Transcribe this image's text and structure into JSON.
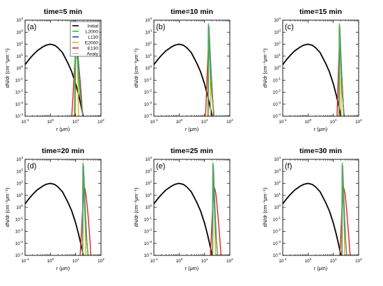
{
  "chart_data": {
    "type": "line",
    "shared": {
      "xlabel": "r (μm)",
      "ylabel": "dN/dr (cm⁻³μm⁻¹)",
      "xscale": "log",
      "yscale": "log",
      "xlim": [
        0.1,
        100
      ],
      "ylim": [
        0.0001,
        10000
      ],
      "xticks": [
        {
          "v": 0.1,
          "b": "10",
          "e": "-1"
        },
        {
          "v": 1,
          "b": "10",
          "e": "0"
        },
        {
          "v": 10,
          "b": "10",
          "e": "1"
        },
        {
          "v": 100,
          "b": "10",
          "e": "2"
        }
      ],
      "yticks": [
        {
          "v": 0.0001,
          "b": "10",
          "e": "-4"
        },
        {
          "v": 0.001,
          "b": "10",
          "e": "-3"
        },
        {
          "v": 0.01,
          "b": "10",
          "e": "-2"
        },
        {
          "v": 0.1,
          "b": "10",
          "e": "-1"
        },
        {
          "v": 1,
          "b": "10",
          "e": "0"
        },
        {
          "v": 10,
          "b": "10",
          "e": "1"
        },
        {
          "v": 100,
          "b": "10",
          "e": "2"
        },
        {
          "v": 1000,
          "b": "10",
          "e": "3"
        },
        {
          "v": 10000,
          "b": "10",
          "e": "4"
        }
      ],
      "legend": {
        "placement": "top-right",
        "entries": [
          {
            "name": "Initial",
            "color": "#000000"
          },
          {
            "name": "L2000",
            "color": "#22cc22"
          },
          {
            "name": "L130",
            "color": "#1f3fd0"
          },
          {
            "name": "E2000",
            "color": "#f2a900"
          },
          {
            "name": "E130",
            "color": "#e02020"
          },
          {
            "name": "Analy",
            "color": "#888888"
          }
        ]
      },
      "initial": {
        "name": "Initial",
        "color": "#000000",
        "x": [
          0.1,
          0.15,
          0.2,
          0.3,
          0.5,
          0.7,
          1,
          1.5,
          2,
          3,
          5,
          7,
          10,
          13,
          16,
          20
        ],
        "y": [
          2,
          6,
          12,
          28,
          60,
          85,
          100,
          80,
          50,
          20,
          2.5,
          0.5,
          0.05,
          0.006,
          0.0009,
          0.0001
        ]
      }
    },
    "panels": [
      {
        "title": "time=5 min",
        "label": "(a)",
        "series": [
          {
            "name": "E130",
            "color": "#e02020",
            "x": [
              7,
              8,
              9,
              10,
              11,
              12,
              13,
              15,
              17,
              19
            ],
            "y": [
              0.0001,
              0.01,
              1,
              30,
              60,
              20,
              3,
              0.1,
              0.003,
              0.0001
            ]
          },
          {
            "name": "E2000",
            "color": "#f2a900",
            "x": [
              8.8,
              9.3,
              9.8,
              10.3,
              11,
              12,
              13
            ],
            "y": [
              0.0001,
              0.5,
              20,
              300,
              50,
              1,
              0.0001
            ]
          },
          {
            "name": "L130",
            "color": "#1f3fd0",
            "x": [
              9.5,
              9.8,
              10.1,
              10.5,
              11.2,
              12.4,
              14.5,
              17,
              19.5
            ],
            "y": [
              0.0001,
              1,
              500,
              3000,
              400,
              10,
              0.1,
              0.001,
              0.0001
            ]
          },
          {
            "name": "L2000",
            "color": "#22cc22",
            "x": [
              9.2,
              9.4,
              9.6,
              9.9,
              10.3,
              11,
              12.2,
              14.5,
              17,
              19.5
            ],
            "y": [
              0.0001,
              10,
              2000,
              5000,
              800,
              50,
              1,
              0.01,
              0.001,
              0.0001
            ]
          },
          {
            "name": "Analy",
            "color": "#888888",
            "x": [
              9.6,
              9.9,
              10.2,
              10.6,
              11.3,
              12.5,
              14.5,
              17,
              19.5
            ],
            "y": [
              0.0001,
              2,
              600,
              3000,
              400,
              10,
              0.1,
              0.001,
              0.0001
            ]
          }
        ]
      },
      {
        "title": "time=10 min",
        "label": "(b)",
        "series": [
          {
            "name": "E130",
            "color": "#e02020",
            "x": [
              11,
              12,
              13,
              14,
              15,
              16,
              17,
              19,
              21,
              23
            ],
            "y": [
              0.0001,
              0.01,
              1,
              30,
              60,
              20,
              3,
              0.1,
              0.003,
              0.0001
            ]
          },
          {
            "name": "E2000",
            "color": "#f2a900",
            "x": [
              13.5,
              14,
              14.5,
              15,
              15.6,
              16.5,
              17.5
            ],
            "y": [
              0.0001,
              0.5,
              20,
              300,
              50,
              1,
              0.0001
            ]
          },
          {
            "name": "L130",
            "color": "#1f3fd0",
            "x": [
              14,
              14.3,
              14.6,
              15,
              15.7,
              17,
              19,
              21.5,
              24
            ],
            "y": [
              0.0001,
              1,
              500,
              3000,
              400,
              10,
              0.1,
              0.001,
              0.0001
            ]
          },
          {
            "name": "L2000",
            "color": "#22cc22",
            "x": [
              13.7,
              13.9,
              14.1,
              14.4,
              14.8,
              15.5,
              16.7,
              19,
              21.5,
              24
            ],
            "y": [
              0.0001,
              10,
              2000,
              5000,
              800,
              50,
              1,
              0.01,
              0.001,
              0.0001
            ]
          },
          {
            "name": "Analy",
            "color": "#888888",
            "x": [
              14.1,
              14.4,
              14.7,
              15.1,
              15.8,
              17,
              19,
              21.5,
              24
            ],
            "y": [
              0.0001,
              2,
              600,
              3000,
              400,
              10,
              0.1,
              0.001,
              0.0001
            ]
          }
        ]
      },
      {
        "title": "time=15 min",
        "label": "(c)",
        "series": [
          {
            "name": "E130",
            "color": "#e02020",
            "x": [
              14,
              15,
              16,
              17,
              18,
              19,
              20,
              22,
              24,
              26
            ],
            "y": [
              0.0001,
              0.01,
              1,
              30,
              60,
              20,
              3,
              0.1,
              0.003,
              0.0001
            ]
          },
          {
            "name": "E2000",
            "color": "#f2a900",
            "x": [
              16.5,
              17,
              17.5,
              18,
              18.6,
              19.5,
              20.5
            ],
            "y": [
              0.0001,
              0.5,
              20,
              300,
              50,
              1,
              0.0001
            ]
          },
          {
            "name": "L130",
            "color": "#1f3fd0",
            "x": [
              17,
              17.3,
              17.6,
              18,
              18.7,
              20,
              22,
              24.5,
              27
            ],
            "y": [
              0.0001,
              1,
              500,
              3000,
              400,
              10,
              0.1,
              0.001,
              0.0001
            ]
          },
          {
            "name": "L2000",
            "color": "#22cc22",
            "x": [
              16.7,
              16.9,
              17.1,
              17.4,
              17.8,
              18.5,
              19.7,
              22,
              24.5,
              27
            ],
            "y": [
              0.0001,
              10,
              2000,
              5000,
              800,
              50,
              1,
              0.01,
              0.001,
              0.0001
            ]
          },
          {
            "name": "Analy",
            "color": "#888888",
            "x": [
              17.1,
              17.4,
              17.7,
              18.1,
              18.8,
              20,
              22,
              24.5,
              27
            ],
            "y": [
              0.0001,
              2,
              600,
              3000,
              400,
              10,
              0.1,
              0.001,
              0.0001
            ]
          }
        ]
      },
      {
        "title": "time=20 min",
        "label": "(d)",
        "series": [
          {
            "name": "E130",
            "color": "#e02020",
            "x": [
              15,
              17,
              19,
              21,
              23,
              25,
              28,
              32,
              36,
              40
            ],
            "y": [
              0.0001,
              0.01,
              1,
              20,
              40,
              15,
              2,
              0.1,
              0.003,
              0.0001
            ]
          },
          {
            "name": "E2000",
            "color": "#f2a900",
            "x": [
              18.5,
              19.2,
              19.9,
              20.6,
              21.5,
              23,
              25
            ],
            "y": [
              0.0001,
              0.5,
              20,
              300,
              50,
              1,
              0.0001
            ]
          },
          {
            "name": "L130",
            "color": "#1f3fd0",
            "x": [
              19,
              19.4,
              19.8,
              20.3,
              21.2,
              22.8,
              25,
              28,
              31
            ],
            "y": [
              0.0001,
              1,
              500,
              3000,
              400,
              10,
              0.1,
              0.001,
              0.0001
            ]
          },
          {
            "name": "L2000",
            "color": "#22cc22",
            "x": [
              18.7,
              18.9,
              19.2,
              19.6,
              20.1,
              21,
              22.5,
              25,
              28,
              31
            ],
            "y": [
              0.0001,
              10,
              2000,
              5000,
              800,
              50,
              1,
              0.01,
              0.001,
              0.0001
            ]
          },
          {
            "name": "Analy",
            "color": "#888888",
            "x": [
              19.1,
              19.5,
              19.9,
              20.4,
              21.3,
              22.9,
              25,
              28,
              31
            ],
            "y": [
              0.0001,
              2,
              600,
              3000,
              400,
              10,
              0.1,
              0.001,
              0.0001
            ]
          }
        ]
      },
      {
        "title": "time=25 min",
        "label": "(e)",
        "series": [
          {
            "name": "E130",
            "color": "#e02020",
            "x": [
              17,
              19,
              21,
              23,
              25,
              28,
              31,
              35,
              40,
              45
            ],
            "y": [
              0.0001,
              0.01,
              1,
              20,
              40,
              15,
              2,
              0.1,
              0.003,
              0.0001
            ]
          },
          {
            "name": "E2000",
            "color": "#f2a900",
            "x": [
              20.5,
              21.2,
              21.9,
              22.6,
              23.5,
              25,
              27
            ],
            "y": [
              0.0001,
              0.5,
              20,
              300,
              50,
              1,
              0.0001
            ]
          },
          {
            "name": "L130",
            "color": "#1f3fd0",
            "x": [
              21,
              21.4,
              21.8,
              22.3,
              23.2,
              24.8,
              27,
              30,
              33
            ],
            "y": [
              0.0001,
              1,
              500,
              3000,
              400,
              10,
              0.1,
              0.001,
              0.0001
            ]
          },
          {
            "name": "L2000",
            "color": "#22cc22",
            "x": [
              20.7,
              20.9,
              21.2,
              21.6,
              22.1,
              23,
              24.5,
              27,
              30,
              33
            ],
            "y": [
              0.0001,
              10,
              2000,
              5000,
              800,
              50,
              1,
              0.01,
              0.001,
              0.0001
            ]
          },
          {
            "name": "Analy",
            "color": "#888888",
            "x": [
              21.1,
              21.5,
              21.9,
              22.4,
              23.3,
              24.9,
              27,
              30,
              33
            ],
            "y": [
              0.0001,
              2,
              600,
              3000,
              400,
              10,
              0.1,
              0.001,
              0.0001
            ]
          }
        ]
      },
      {
        "title": "time=30 min",
        "label": "(f)",
        "series": [
          {
            "name": "E130",
            "color": "#e02020",
            "x": [
              18,
              20,
              22,
              24,
              26,
              29,
              32,
              36,
              41,
              46
            ],
            "y": [
              0.0001,
              0.01,
              1,
              20,
              40,
              15,
              2,
              0.1,
              0.003,
              0.0001
            ]
          },
          {
            "name": "E2000",
            "color": "#f2a900",
            "x": [
              21.5,
              22.2,
              22.9,
              23.6,
              24.5,
              26,
              28
            ],
            "y": [
              0.0001,
              0.5,
              20,
              300,
              50,
              1,
              0.0001
            ]
          },
          {
            "name": "L130",
            "color": "#1f3fd0",
            "x": [
              22,
              22.4,
              22.8,
              23.3,
              24.2,
              25.8,
              28,
              31,
              34
            ],
            "y": [
              0.0001,
              1,
              500,
              3000,
              400,
              10,
              0.1,
              0.001,
              0.0001
            ]
          },
          {
            "name": "L2000",
            "color": "#22cc22",
            "x": [
              21.7,
              21.9,
              22.2,
              22.6,
              23.1,
              24,
              25.5,
              28,
              31,
              34
            ],
            "y": [
              0.0001,
              10,
              2000,
              5000,
              800,
              50,
              1,
              0.01,
              0.001,
              0.0001
            ]
          },
          {
            "name": "Analy",
            "color": "#888888",
            "x": [
              22.1,
              22.5,
              22.9,
              23.4,
              24.3,
              25.9,
              28,
              31,
              34
            ],
            "y": [
              0.0001,
              2,
              600,
              3000,
              400,
              10,
              0.1,
              0.001,
              0.0001
            ]
          }
        ]
      }
    ]
  }
}
